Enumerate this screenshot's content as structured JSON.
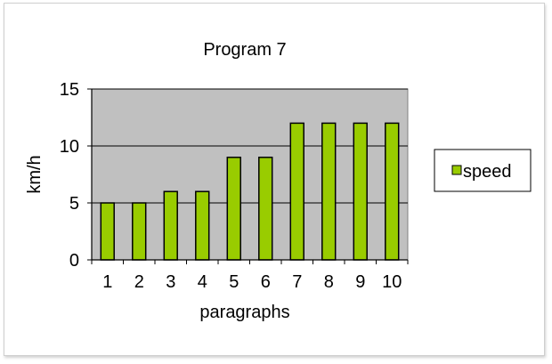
{
  "chart_data": {
    "type": "bar",
    "title": "Program 7",
    "xlabel": "paragraphs",
    "ylabel": "km/h",
    "categories": [
      "1",
      "2",
      "3",
      "4",
      "5",
      "6",
      "7",
      "8",
      "9",
      "10"
    ],
    "series": [
      {
        "name": "speed",
        "values": [
          5,
          5,
          6,
          6,
          9,
          9,
          12,
          12,
          12,
          12
        ]
      }
    ],
    "ylim": [
      0,
      15
    ],
    "yticks": [
      0,
      5,
      10,
      15
    ],
    "grid": true,
    "legend": "right",
    "colors": {
      "bar_fill": "#99cc00",
      "bar_stroke": "#000000",
      "plot_bg": "#c0c0c0",
      "grid": "#000000"
    }
  }
}
